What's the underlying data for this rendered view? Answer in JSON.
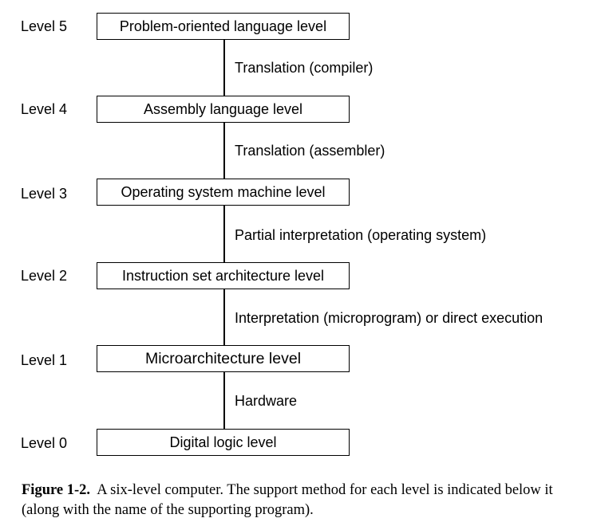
{
  "levels": [
    {
      "label": "Level 5",
      "name": "Problem-oriented language level"
    },
    {
      "label": "Level 4",
      "name": "Assembly language level"
    },
    {
      "label": "Level 3",
      "name": "Operating system machine level"
    },
    {
      "label": "Level 2",
      "name": "Instruction set architecture level"
    },
    {
      "label": "Level 1",
      "name": "Microarchitecture level"
    },
    {
      "label": "Level 0",
      "name": "Digital logic level"
    }
  ],
  "methods": [
    "Translation (compiler)",
    "Translation (assembler)",
    "Partial interpretation (operating system)",
    "Interpretation (microprogram) or direct execution",
    "Hardware"
  ],
  "caption": {
    "label": "Figure 1-2.",
    "text": "A six-level computer. The support method for each level is indicated below it (along with the name of the supporting program)."
  }
}
